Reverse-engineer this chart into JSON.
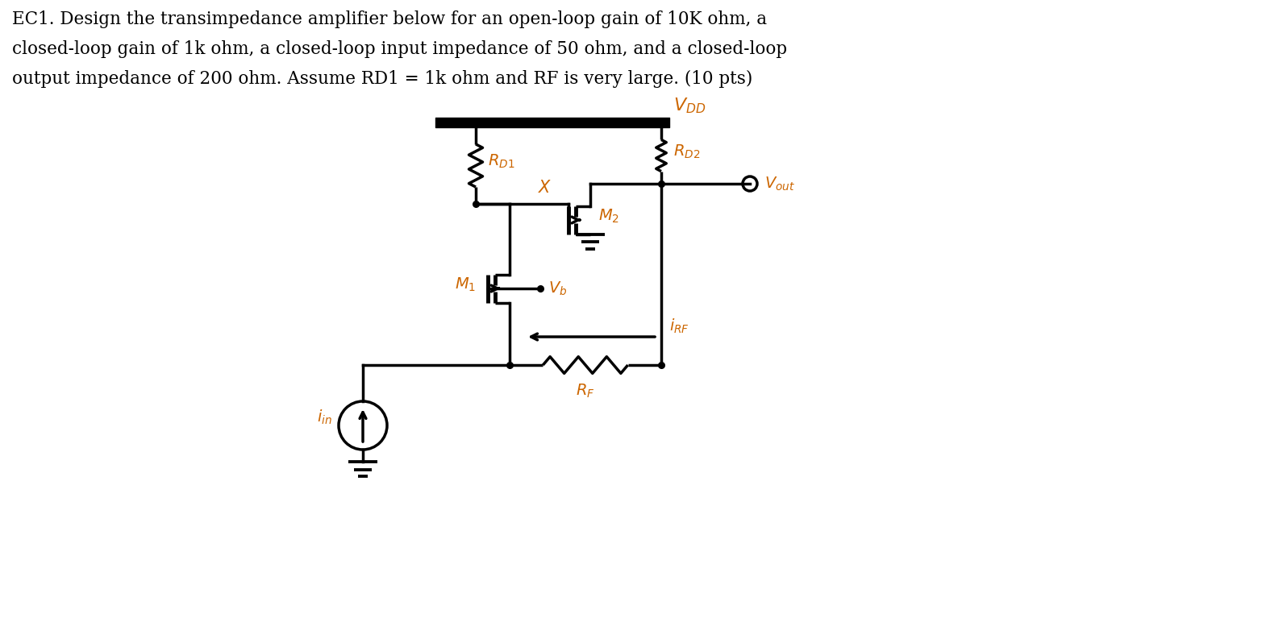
{
  "title_line1": "EC1. Design the transimpedance amplifier below for an open-loop gain of 10K ohm, a",
  "title_line2": "closed-loop gain of 1k ohm, a closed-loop input impedance of 50 ohm, and a closed-loop",
  "title_line3": "output impedance of 200 ohm. Assume RD1 = 1k ohm and RF is very large. (10 pts)",
  "title_fontsize": 15.5,
  "label_fontsize": 14,
  "bg_color": "#ffffff",
  "line_color": "#000000",
  "text_color": "#cc6600",
  "lw": 2.5,
  "lw_bar": 5.0
}
